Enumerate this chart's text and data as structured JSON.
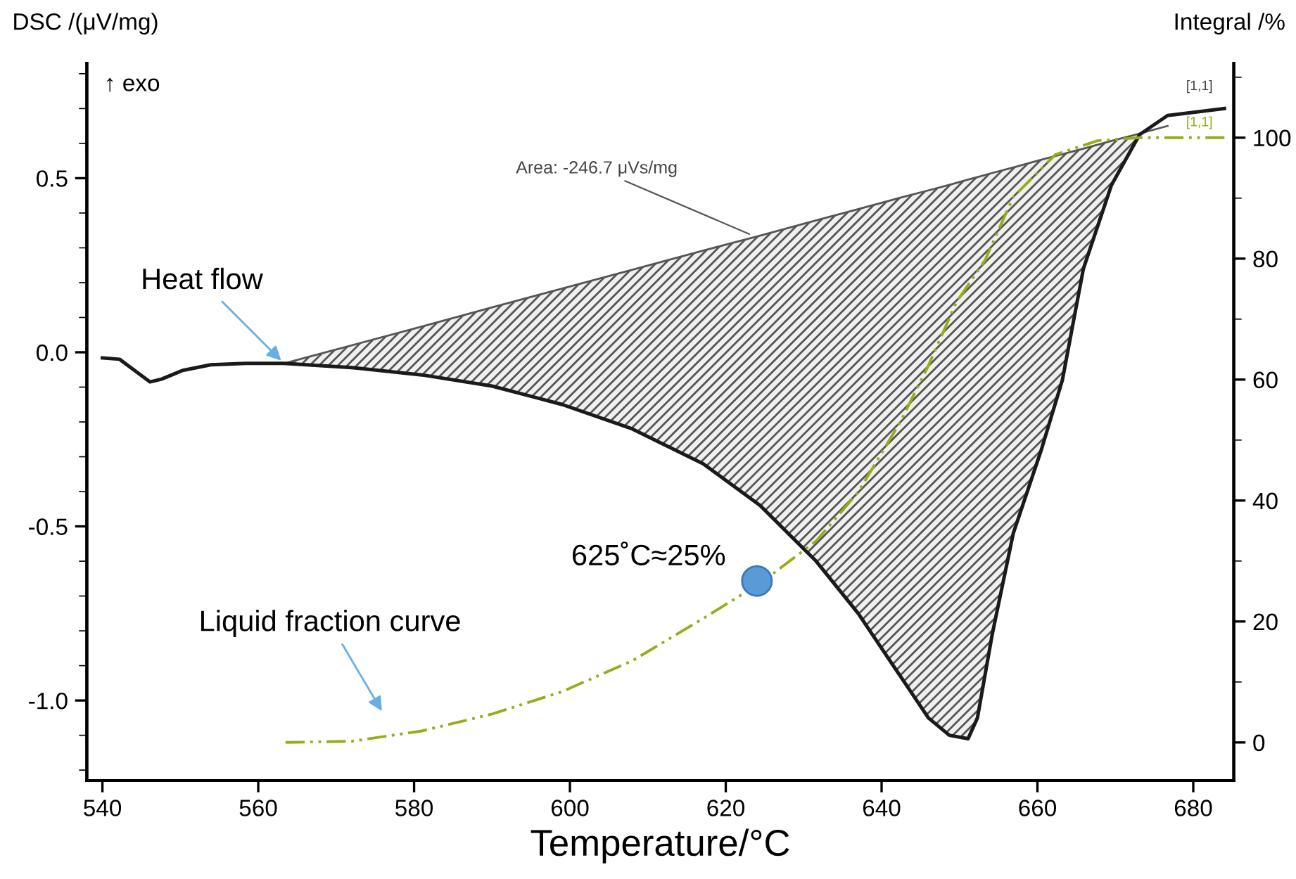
{
  "chart_data": {
    "type": "line",
    "xlabel": "Temperature/°C",
    "ylabel": "DSC /(μV/mg)",
    "y2label": "Integral /%",
    "xlim": [
      538,
      685.2
    ],
    "xticks": [
      540,
      560,
      580,
      600,
      620,
      640,
      660,
      680
    ],
    "ylim": [
      -1.23,
      0.83
    ],
    "yticks": [
      {
        "value": -1.0,
        "label": "-1.0"
      },
      {
        "value": -0.5,
        "label": "-0.5"
      },
      {
        "value": 0.0,
        "label": "0.0"
      },
      {
        "value": 0.5,
        "label": "0.5"
      }
    ],
    "y2lim": [
      -6.3,
      112.3
    ],
    "y2ticks": [
      0,
      20,
      40,
      60,
      80,
      100
    ],
    "series": [
      {
        "color": "#1a1a1a",
        "line_style": "solid",
        "x": [
          540,
          542.2,
          544,
          546.1,
          547.6,
          550.3,
          553.9,
          558.4,
          563.3,
          572,
          581,
          590,
          599,
          608,
          617.1,
          624.4,
          631.6,
          637,
          642.4,
          646,
          648.7,
          651.1,
          652.3,
          654.2,
          656.9,
          660.5,
          663.2,
          665.9,
          669.5,
          673.1,
          676.7,
          680.4,
          684
        ],
        "values": [
          -0.016,
          -0.02,
          -0.05,
          -0.085,
          -0.077,
          -0.052,
          -0.036,
          -0.032,
          -0.032,
          -0.044,
          -0.065,
          -0.097,
          -0.15,
          -0.22,
          -0.32,
          -0.44,
          -0.6,
          -0.75,
          -0.93,
          -1.05,
          -1.1,
          -1.11,
          -1.05,
          -0.81,
          -0.52,
          -0.28,
          -0.08,
          0.24,
          0.48,
          0.625,
          0.68,
          0.69,
          0.7
        ]
      },
      {
        "type": "line",
        "color": "#555555",
        "line_style": "solid",
        "x": [
          563.3,
          572,
          581,
          590,
          599,
          608,
          617.1,
          624.4,
          631.6,
          637,
          642.4,
          646,
          648.7,
          651.1,
          652.3,
          654.2,
          656.9,
          660.5,
          663.2,
          665.9,
          669.5,
          673.1,
          676.7
        ],
        "values": [
          -0.032,
          0.02,
          0.074,
          0.129,
          0.183,
          0.237,
          0.292,
          0.335,
          0.379,
          0.411,
          0.444,
          0.465,
          0.481,
          0.496,
          0.503,
          0.515,
          0.531,
          0.553,
          0.569,
          0.585,
          0.607,
          0.628,
          0.65
        ],
        "upper": [
          -0.032,
          0.02,
          0.074,
          0.129,
          0.183,
          0.237,
          0.292,
          0.335,
          0.379,
          0.411,
          0.444,
          0.465,
          0.481,
          0.496,
          0.503,
          0.515,
          0.531,
          0.553,
          0.569,
          0.585,
          0.607,
          0.628,
          0.65
        ],
        "lower": [
          -0.032,
          -0.044,
          -0.065,
          -0.097,
          -0.15,
          -0.22,
          -0.32,
          -0.44,
          -0.6,
          -0.75,
          -0.93,
          -1.05,
          -1.1,
          -1.11,
          -1.05,
          -0.81,
          -0.52,
          -0.28,
          -0.08,
          0.24,
          0.48,
          0.625,
          0.65
        ]
      },
      {
        "axis": "y2",
        "color": "#9aab1a",
        "line_style": "dashed",
        "x": [
          563.5,
          572,
          581,
          590,
          599,
          608,
          617.1,
          624.4,
          631.6,
          637,
          642.4,
          646,
          649.6,
          653.3,
          656.9,
          662.3,
          667.7,
          673.1,
          684
        ],
        "values": [
          0,
          0.2,
          1.9,
          4.7,
          8.4,
          13.5,
          20.5,
          26.3,
          33.3,
          41.4,
          53,
          62.3,
          72.8,
          79.8,
          90.2,
          97.2,
          99.5,
          100,
          100
        ]
      },
      {
        "type": "scatter",
        "axis": "y2",
        "color": "#5b9bd5",
        "marker": "circle",
        "x": [
          624
        ],
        "values": [
          26.7
        ]
      }
    ],
    "annotations": [
      {
        "text": "Heat flow",
        "x": 563.3,
        "y": -0.032
      },
      "Liquid fraction curve",
      {
        "text": "625˚C≈25%",
        "x": 624,
        "y": -0.657
      },
      {
        "text": "Area: -246.7 μVs/mg",
        "x": 623.5,
        "y": 0.335
      },
      {
        "text": "[1,1]",
        "x": 684,
        "y": 0.7
      },
      {
        "text": "[1,1]",
        "x": 684,
        "y": 0.613
      },
      "↑ exo"
    ]
  }
}
